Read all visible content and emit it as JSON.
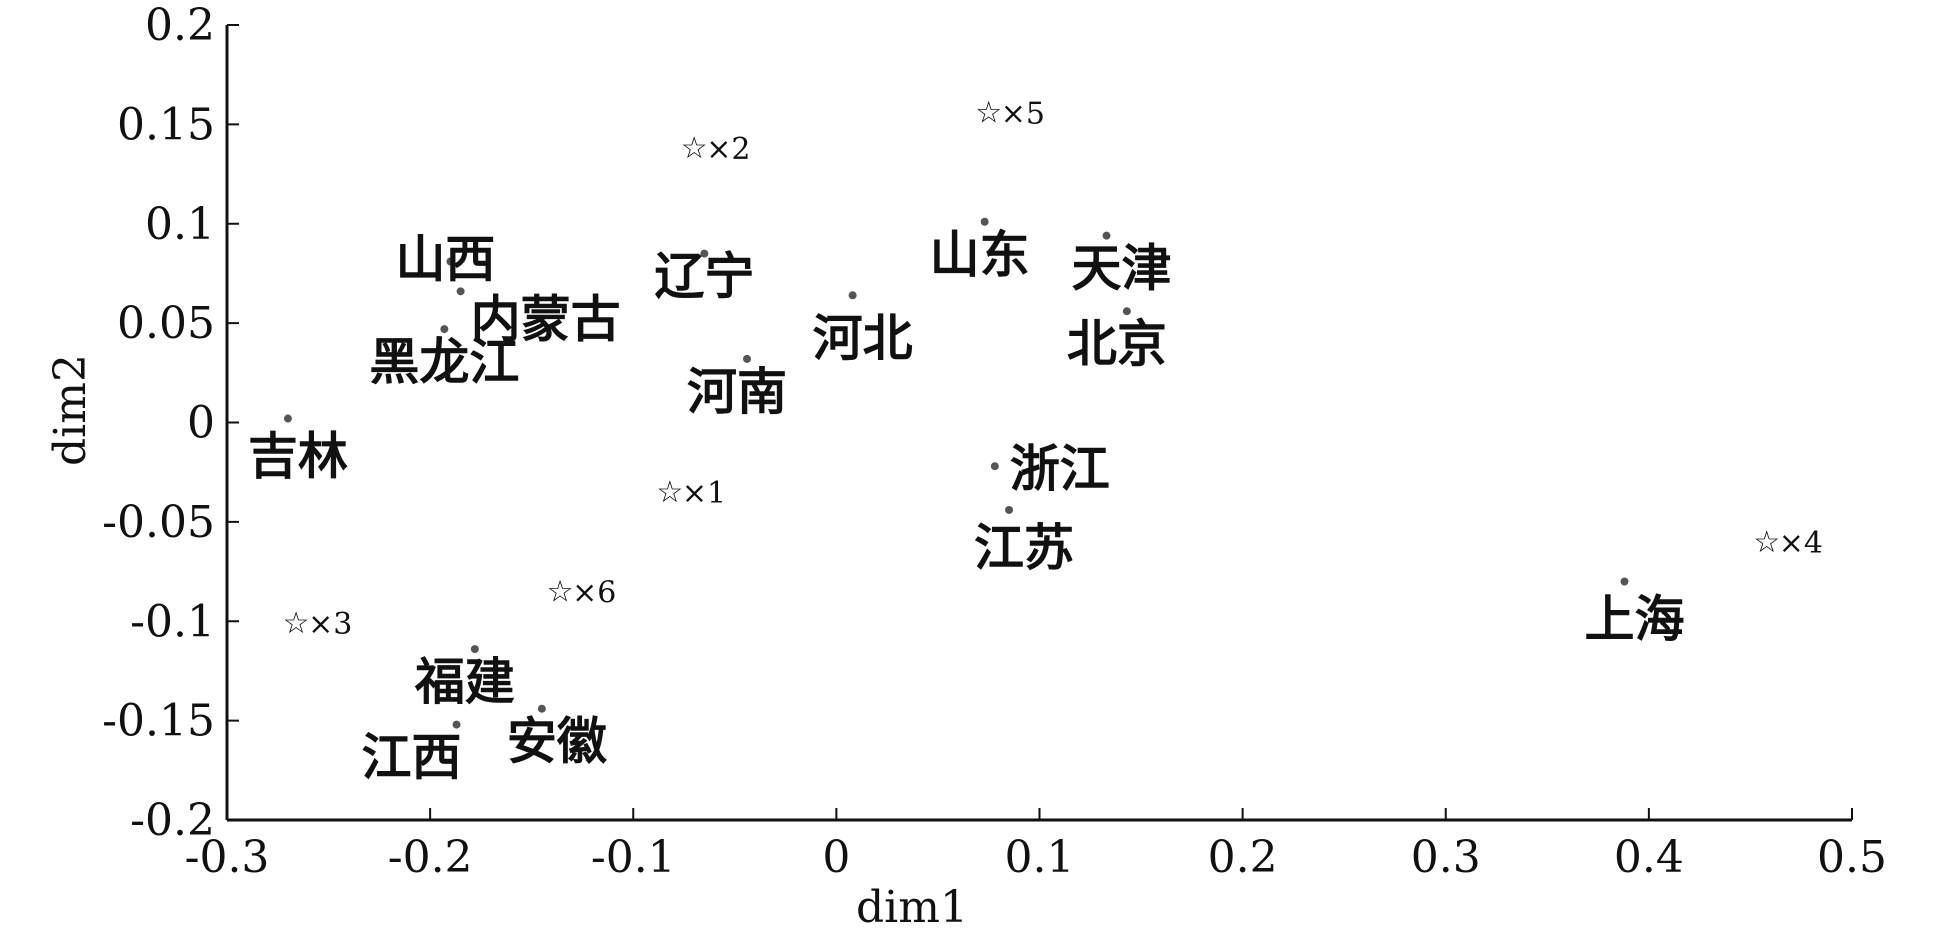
{
  "chart_data": {
    "type": "scatter",
    "title": "",
    "xlabel": "dim1",
    "ylabel": "dim2",
    "xlim": [
      -0.3,
      0.5
    ],
    "ylim": [
      -0.2,
      0.2
    ],
    "xticks": [
      {
        "value": -0.3,
        "label": "-0.3"
      },
      {
        "value": -0.2,
        "label": "-0.2"
      },
      {
        "value": -0.1,
        "label": "-0.1"
      },
      {
        "value": 0,
        "label": "0"
      },
      {
        "value": 0.1,
        "label": "0.1"
      },
      {
        "value": 0.2,
        "label": "0.2"
      },
      {
        "value": 0.3,
        "label": "0.3"
      },
      {
        "value": 0.4,
        "label": "0.4"
      },
      {
        "value": 0.5,
        "label": "0.5"
      }
    ],
    "yticks": [
      {
        "value": 0.2,
        "label": "0.2"
      },
      {
        "value": 0.15,
        "label": "0.15"
      },
      {
        "value": 0.1,
        "label": "0.1"
      },
      {
        "value": 0.05,
        "label": "0.05"
      },
      {
        "value": 0,
        "label": "0"
      },
      {
        "value": -0.05,
        "label": "-0.05"
      },
      {
        "value": -0.1,
        "label": "-0.1"
      },
      {
        "value": -0.15,
        "label": "-0.15"
      },
      {
        "value": -0.2,
        "label": "-0.2"
      }
    ],
    "grid": false,
    "legend": "none",
    "provinces": [
      {
        "label": "山西",
        "x": -0.19,
        "y": 0.081
      },
      {
        "label": "内蒙古",
        "x": -0.185,
        "y": 0.066
      },
      {
        "label": "辽宁",
        "x": -0.065,
        "y": 0.085
      },
      {
        "label": "河北",
        "x": 0.008,
        "y": 0.064
      },
      {
        "label": "山东",
        "x": 0.073,
        "y": 0.101
      },
      {
        "label": "天津",
        "x": 0.133,
        "y": 0.094
      },
      {
        "label": "北京",
        "x": 0.143,
        "y": 0.056
      },
      {
        "label": "黑龙江",
        "x": -0.193,
        "y": 0.047
      },
      {
        "label": "河南",
        "x": -0.044,
        "y": 0.032
      },
      {
        "label": "吉林",
        "x": -0.27,
        "y": 0.002
      },
      {
        "label": "浙江",
        "x": 0.078,
        "y": -0.022
      },
      {
        "label": "江苏",
        "x": 0.085,
        "y": -0.044
      },
      {
        "label": "上海",
        "x": 0.388,
        "y": -0.08
      },
      {
        "label": "福建",
        "x": -0.178,
        "y": -0.114
      },
      {
        "label": "安徽",
        "x": -0.145,
        "y": -0.144
      },
      {
        "label": "江西",
        "x": -0.187,
        "y": -0.152
      }
    ],
    "cluster_centers": [
      {
        "label": "×1",
        "x": -0.082,
        "y": -0.035
      },
      {
        "label": "×2",
        "x": -0.07,
        "y": 0.138
      },
      {
        "label": "×3",
        "x": -0.266,
        "y": -0.101
      },
      {
        "label": "×4",
        "x": 0.458,
        "y": -0.06
      },
      {
        "label": "×5",
        "x": 0.075,
        "y": 0.156
      },
      {
        "label": "×6",
        "x": -0.136,
        "y": -0.085
      }
    ]
  }
}
